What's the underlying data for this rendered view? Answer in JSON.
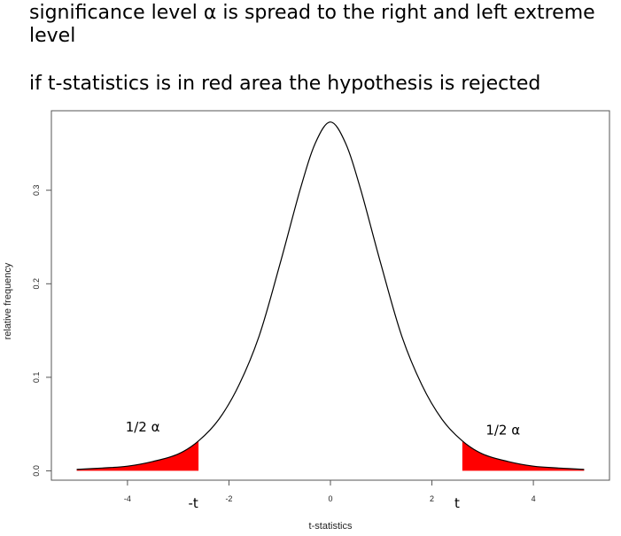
{
  "header": {
    "line1": "significance level α is spread to the right and left extreme level",
    "line2": "if t-statistics is in red area the hypothesis is rejected"
  },
  "chart_data": {
    "type": "area",
    "title": "",
    "xlabel": "t-statistics",
    "ylabel": "relative frequency",
    "xlim": [
      -5.5,
      5.5
    ],
    "ylim": [
      -0.01,
      0.385
    ],
    "x_ticks": [
      {
        "value": -4,
        "label": "-4"
      },
      {
        "value": -2,
        "label": "-2"
      },
      {
        "value": 0,
        "label": "0"
      },
      {
        "value": 2,
        "label": "2"
      },
      {
        "value": 4,
        "label": "4"
      }
    ],
    "y_ticks": [
      {
        "value": 0.0,
        "label": "0.0"
      },
      {
        "value": 0.1,
        "label": "0.1"
      },
      {
        "value": 0.2,
        "label": "0.2"
      },
      {
        "value": 0.3,
        "label": "0.3"
      }
    ],
    "series": [
      {
        "x": [
          -5.0,
          -4.5,
          -4.0,
          -3.5,
          -3.0,
          -2.6,
          -2.2,
          -1.8,
          -1.4,
          -1.0,
          -0.6,
          -0.3,
          0.0,
          0.3,
          0.6,
          1.0,
          1.4,
          1.8,
          2.2,
          2.6,
          3.0,
          3.5,
          4.0,
          4.5,
          5.0
        ],
        "y": [
          0.0015,
          0.003,
          0.005,
          0.01,
          0.018,
          0.032,
          0.055,
          0.092,
          0.145,
          0.22,
          0.3,
          0.35,
          0.373,
          0.35,
          0.3,
          0.22,
          0.145,
          0.092,
          0.055,
          0.032,
          0.018,
          0.01,
          0.005,
          0.003,
          0.0015
        ]
      }
    ],
    "rejection_regions": [
      {
        "from": -5.0,
        "to": -2.6,
        "color": "#ff0000"
      },
      {
        "from": 2.6,
        "to": 5.0,
        "color": "#ff0000"
      }
    ],
    "critical_values": [
      {
        "value": -2.6,
        "label": "-t"
      },
      {
        "value": 2.6,
        "label": "t"
      }
    ],
    "annotations": [
      {
        "text": "1/2 α",
        "x": -3.7,
        "y": 0.042
      },
      {
        "text": "1/2 α",
        "x": 3.4,
        "y": 0.039
      }
    ],
    "curve_color": "#000000",
    "grid": false
  }
}
